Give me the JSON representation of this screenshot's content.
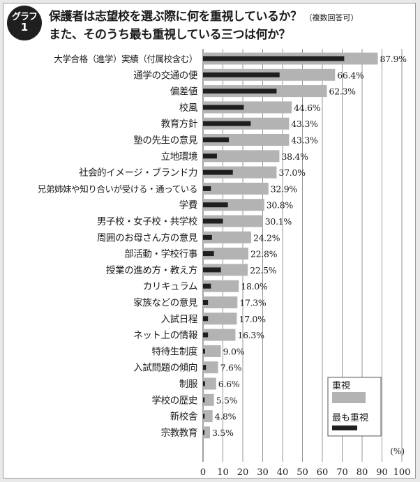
{
  "header": {
    "badge_line1": "グラフ",
    "badge_line2": "1",
    "title_line1": "保護者は志望校を選ぶ際に何を重視しているか？",
    "title_note": "（複数回答可）",
    "title_line2": "また、そのうち最も重視している三つは何か？"
  },
  "colors": {
    "primary_bar": "#b3b3b3",
    "secondary_bar": "#1f1f1f",
    "gridline": "#7a7a7a"
  },
  "chart_data": {
    "type": "bar",
    "orientation": "horizontal",
    "categories": [
      "大学合格（進学）実績（付属校含む）",
      "通学の交通の便",
      "偏差値",
      "校風",
      "教育方針",
      "塾の先生の意見",
      "立地環境",
      "社会的イメージ・ブランド力",
      "兄弟姉妹や知り合いが受ける・通っている",
      "学費",
      "男子校・女子校・共学校",
      "周囲のお母さん方の意見",
      "部活動・学校行事",
      "授業の進め方・教え方",
      "カリキュラム",
      "家族などの意見",
      "入試日程",
      "ネット上の情報",
      "特待生制度",
      "入試問題の傾向",
      "制服",
      "学校の歴史",
      "新校舎",
      "宗教教育"
    ],
    "series": [
      {
        "name": "重視",
        "values": [
          87.9,
          66.4,
          62.3,
          44.6,
          43.3,
          43.3,
          38.4,
          37.0,
          32.9,
          30.8,
          30.1,
          24.2,
          22.8,
          22.5,
          18.0,
          17.3,
          17.0,
          16.3,
          9.0,
          7.6,
          6.6,
          5.5,
          4.8,
          3.5
        ]
      },
      {
        "name": "最も重視",
        "values": [
          71.0,
          38.5,
          37.0,
          20.5,
          24.0,
          13.0,
          7.0,
          15.0,
          4.0,
          12.5,
          10.0,
          4.5,
          5.5,
          9.0,
          4.0,
          2.5,
          2.5,
          2.5,
          1.0,
          1.5,
          1.0,
          0.8,
          0.8,
          0.5
        ]
      }
    ],
    "data_labels": [
      "87.9%",
      "66.4%",
      "62.3%",
      "44.6%",
      "43.3%",
      "43.3%",
      "38.4%",
      "37.0%",
      "32.9%",
      "30.8%",
      "30.1%",
      "24.2%",
      "22.8%",
      "22.5%",
      "18.0%",
      "17.3%",
      "17.0%",
      "16.3%",
      "9.0%",
      "7.6%",
      "6.6%",
      "5.5%",
      "4.8%",
      "3.5%"
    ],
    "x_ticks": [
      "0",
      "10",
      "20",
      "30",
      "40",
      "50",
      "60",
      "70",
      "80",
      "90",
      "100"
    ],
    "xlim": [
      0,
      100
    ],
    "x_unit": "(%)",
    "grid": true,
    "legend_position": "bottom-right"
  }
}
